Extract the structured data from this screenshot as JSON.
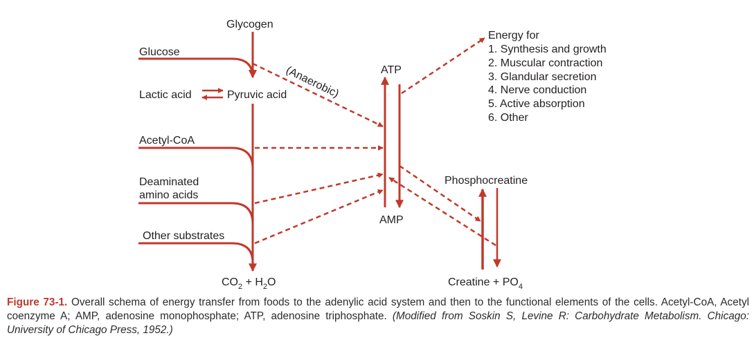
{
  "labels": {
    "glycogen": "Glycogen",
    "glucose": "Glucose",
    "lactic_acid": "Lactic acid",
    "pyruvic_acid": "Pyruvic acid",
    "anaerobic": "(Anaerobic)",
    "acetyl_coa": "Acetyl-CoA",
    "deaminated_line1": "Deaminated",
    "deaminated_line2": "amino acids",
    "other_substrates": "Other substrates",
    "co2": "CO",
    "co2_sub": "2",
    "plus_h": " + H",
    "h2o_sub": "2",
    "o": "O",
    "atp": "ATP",
    "amp": "AMP",
    "phosphocreatine": "Phosphocreatine",
    "creatine": "Creatine + PO",
    "po4_sub": "4"
  },
  "energy": {
    "title": "Energy for",
    "items": [
      "1. Synthesis and growth",
      "2. Muscular contraction",
      "3. Glandular secretion",
      "4. Nerve conduction",
      "5. Active absorption",
      "6. Other"
    ]
  },
  "caption": {
    "label": "Figure 73-1.",
    "text": " Overall schema of energy transfer from foods to the adenylic acid system and then to the functional elements of the cells. Acetyl-CoA, Acetyl coenzyme A; AMP, adenosine monophosphate; ATP, adenosine triphosphate. ",
    "source": "(Modified from Soskin S, Levine R: Carbohydrate Metabolism. Chicago: University of Chicago Press, 1952.)"
  },
  "colors": {
    "arrow": "#c0392b",
    "text": "#231f20"
  }
}
